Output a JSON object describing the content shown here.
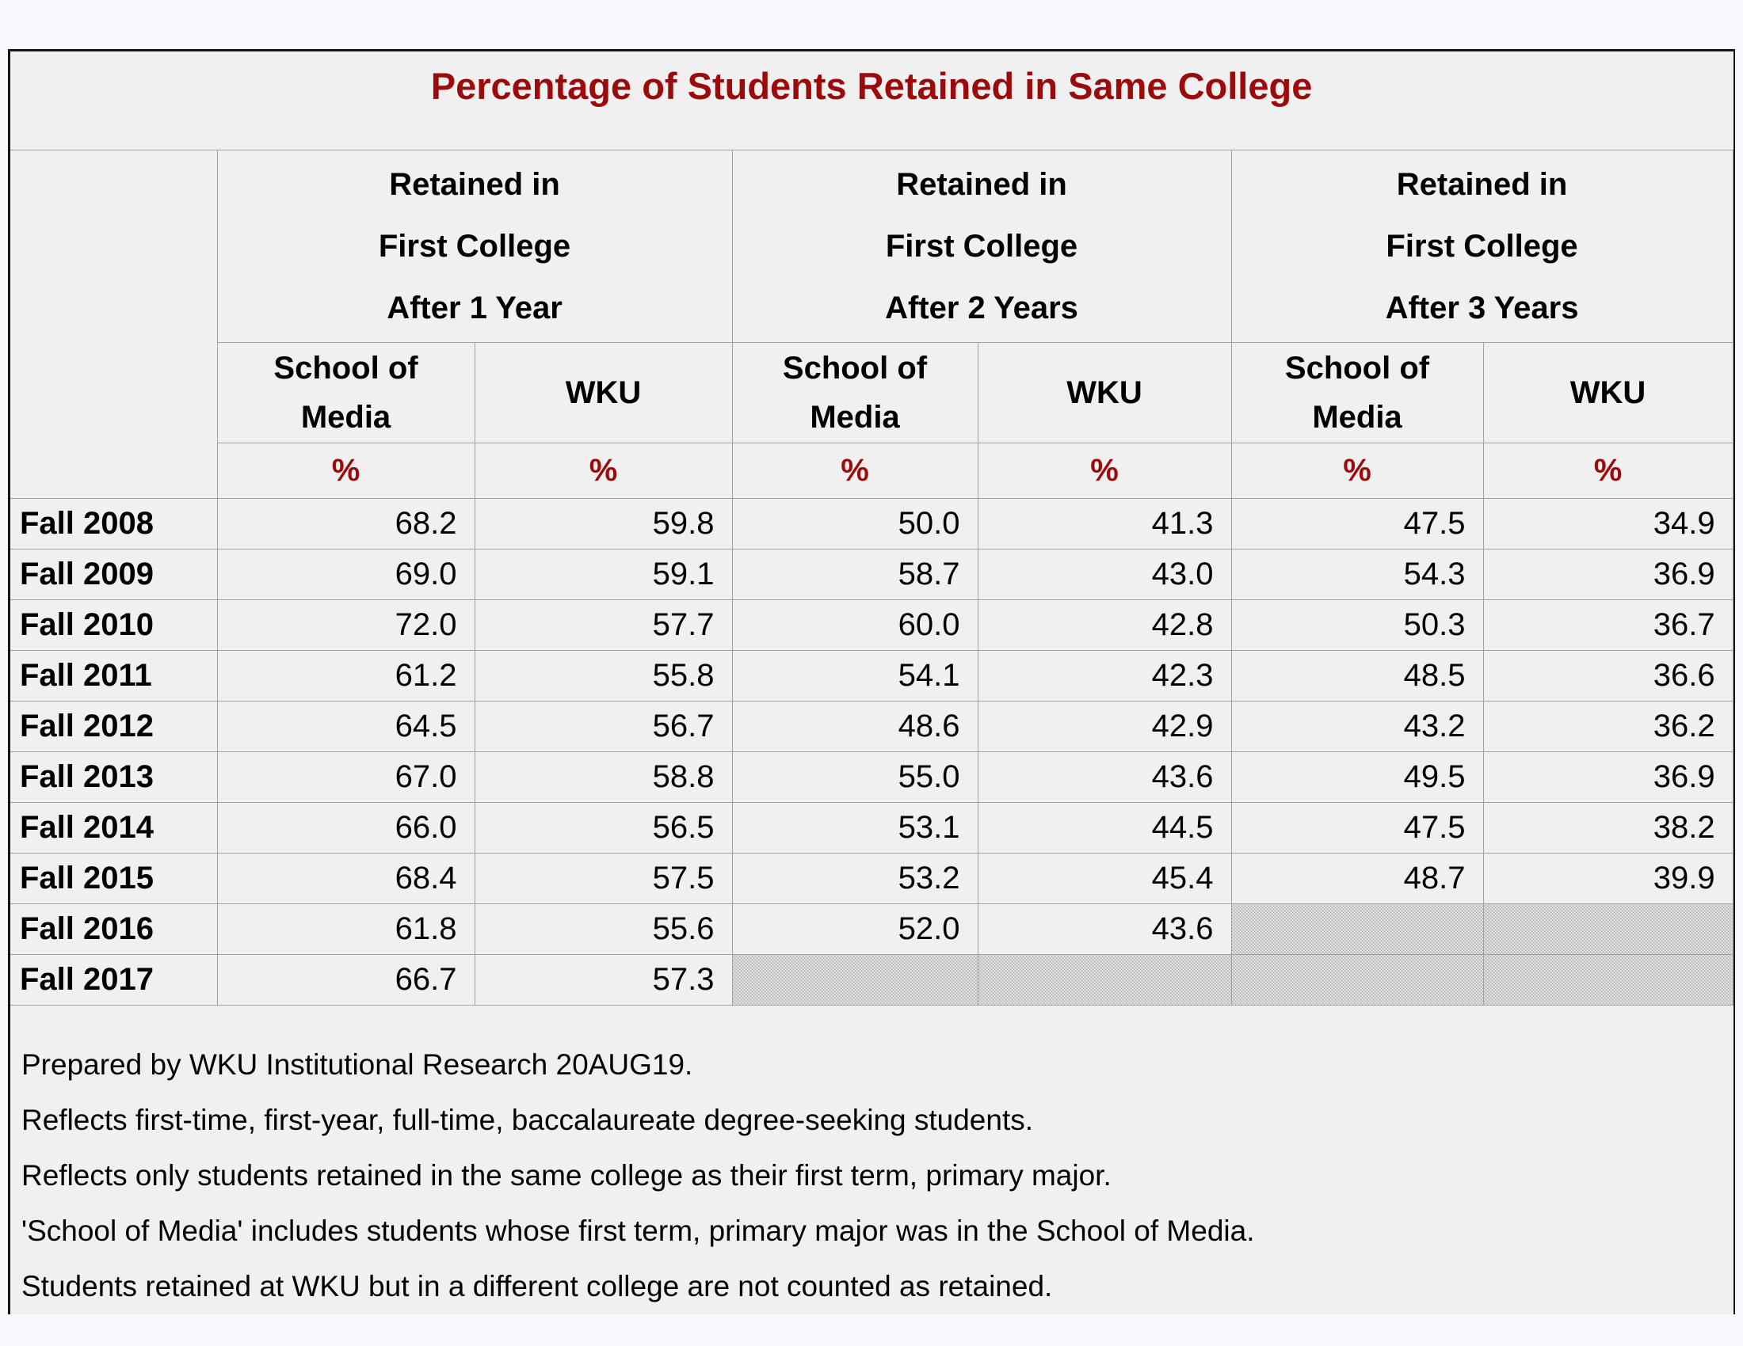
{
  "title": "Percentage of Students Retained in Same College",
  "colors": {
    "title_red": "#9b0b0b",
    "percent_red": "#9b0b0b",
    "cell_background": "#f0f0f0",
    "grid_line": "#a0a0a0",
    "hatch_gray": "#b3b3b3"
  },
  "table": {
    "header": {
      "groups": [
        "Retained in\nFirst College\nAfter 1 Year",
        "Retained in\nFirst College\nAfter 2 Years",
        "Retained in\nFirst College\nAfter 3 Years"
      ],
      "subheads": [
        "School of\nMedia",
        "WKU",
        "School of\nMedia",
        "WKU",
        "School of\nMedia",
        "WKU"
      ],
      "unit": "%"
    },
    "rows": [
      {
        "year": "Fall 2008",
        "values": [
          "68.2",
          "59.8",
          "50.0",
          "41.3",
          "47.5",
          "34.9"
        ]
      },
      {
        "year": "Fall 2009",
        "values": [
          "69.0",
          "59.1",
          "58.7",
          "43.0",
          "54.3",
          "36.9"
        ]
      },
      {
        "year": "Fall 2010",
        "values": [
          "72.0",
          "57.7",
          "60.0",
          "42.8",
          "50.3",
          "36.7"
        ]
      },
      {
        "year": "Fall 2011",
        "values": [
          "61.2",
          "55.8",
          "54.1",
          "42.3",
          "48.5",
          "36.6"
        ]
      },
      {
        "year": "Fall 2012",
        "values": [
          "64.5",
          "56.7",
          "48.6",
          "42.9",
          "43.2",
          "36.2"
        ]
      },
      {
        "year": "Fall 2013",
        "values": [
          "67.0",
          "58.8",
          "55.0",
          "43.6",
          "49.5",
          "36.9"
        ]
      },
      {
        "year": "Fall 2014",
        "values": [
          "66.0",
          "56.5",
          "53.1",
          "44.5",
          "47.5",
          "38.2"
        ]
      },
      {
        "year": "Fall 2015",
        "values": [
          "68.4",
          "57.5",
          "53.2",
          "45.4",
          "48.7",
          "39.9"
        ]
      },
      {
        "year": "Fall 2016",
        "values": [
          "61.8",
          "55.6",
          "52.0",
          "43.6",
          null,
          null
        ]
      },
      {
        "year": "Fall 2017",
        "values": [
          "66.7",
          "57.3",
          null,
          null,
          null,
          null
        ]
      }
    ]
  },
  "notes": [
    "Prepared by WKU Institutional Research 20AUG19.",
    "Reflects first-time, first-year, full-time, baccalaureate degree-seeking students.",
    "Reflects only students retained in the same college as their first term, primary major.",
    "'School of Media' includes students whose first term, primary major was in the School of Media.",
    "Students retained at WKU but in a different college are not counted as retained."
  ]
}
